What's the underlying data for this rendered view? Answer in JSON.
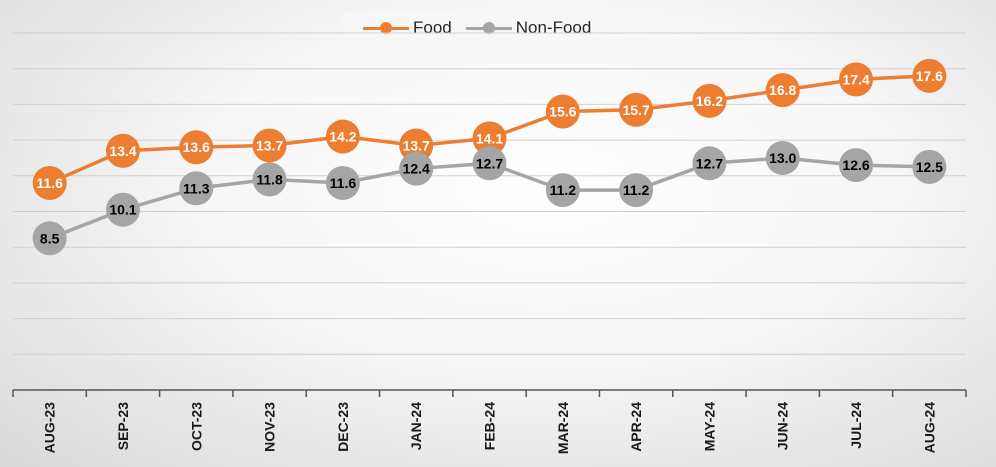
{
  "chart_data": {
    "type": "line",
    "categories": [
      "AUG-23",
      "SEP-23",
      "OCT-23",
      "NOV-23",
      "DEC-23",
      "JAN-24",
      "FEB-24",
      "MAR-24",
      "APR-24",
      "MAY-24",
      "JUN-24",
      "JUL-24",
      "AUG-24"
    ],
    "series": [
      {
        "name": "Food",
        "color": "#ED7D31",
        "label_color": "#FFFFFF",
        "values": [
          11.6,
          13.4,
          13.6,
          13.7,
          14.2,
          13.7,
          14.1,
          15.6,
          15.7,
          16.2,
          16.8,
          17.4,
          17.6
        ],
        "labels": [
          "11.6",
          "13.4",
          "13.6",
          "13.7",
          "14.2",
          "13.7",
          "14.1",
          "15.6",
          "15.7",
          "16.2",
          "16.8",
          "17.4",
          "17.6"
        ]
      },
      {
        "name": "Non-Food",
        "color": "#A5A5A5",
        "label_color": "#000000",
        "values": [
          8.5,
          10.1,
          11.3,
          11.8,
          11.6,
          12.4,
          12.7,
          11.2,
          11.2,
          12.7,
          13.0,
          12.6,
          12.5
        ],
        "labels": [
          "8.5",
          "10.1",
          "11.3",
          "11.8",
          "11.6",
          "12.4",
          "12.7",
          "11.2",
          "11.2",
          "12.7",
          "13.0",
          "12.6",
          "12.5"
        ]
      }
    ],
    "ylim": [
      0,
      20
    ],
    "grid": true,
    "legend": "top-center"
  }
}
